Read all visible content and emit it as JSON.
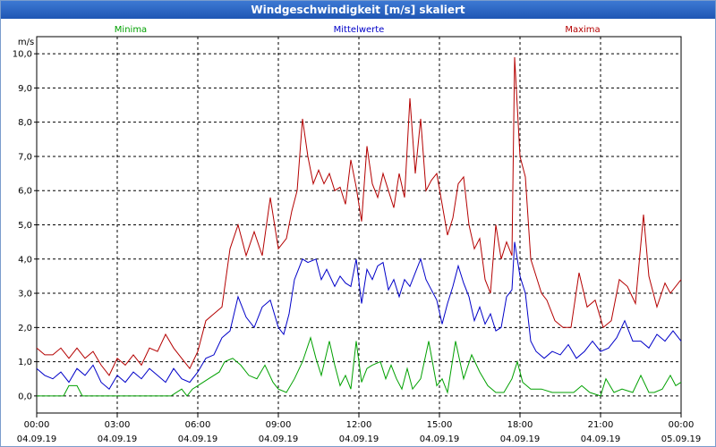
{
  "window": {
    "title": "Windgeschwindigkeit [m/s] skaliert"
  },
  "chart_data": {
    "type": "line",
    "title": "Windgeschwindigkeit [m/s] skaliert",
    "ylabel": "m/s",
    "ylim": [
      -0.5,
      10.5
    ],
    "xlim": [
      0,
      24
    ],
    "grid": true,
    "legend": "top",
    "y_ticks": [
      "0,0",
      "1,0",
      "2,0",
      "3,0",
      "4,0",
      "5,0",
      "6,0",
      "7,0",
      "8,0",
      "9,0",
      "10,0"
    ],
    "x_ticks": [
      {
        "time": "00:00",
        "date": "04.09.19"
      },
      {
        "time": "03:00",
        "date": "04.09.19"
      },
      {
        "time": "06:00",
        "date": "04.09.19"
      },
      {
        "time": "09:00",
        "date": "04.09.19"
      },
      {
        "time": "12:00",
        "date": "04.09.19"
      },
      {
        "time": "15:00",
        "date": "04.09.19"
      },
      {
        "time": "18:00",
        "date": "04.09.19"
      },
      {
        "time": "21:00",
        "date": "04.09.19"
      },
      {
        "time": "00:00",
        "date": "05.09.19"
      }
    ],
    "series": [
      {
        "name": "Minima",
        "color": "#00a000",
        "points": [
          [
            0,
            0
          ],
          [
            1,
            0
          ],
          [
            1.2,
            0.3
          ],
          [
            1.5,
            0.3
          ],
          [
            1.7,
            0
          ],
          [
            3,
            0
          ],
          [
            4,
            0
          ],
          [
            5,
            0
          ],
          [
            5.4,
            0.2
          ],
          [
            5.6,
            0
          ],
          [
            5.8,
            0.2
          ],
          [
            6,
            0.3
          ],
          [
            6.4,
            0.5
          ],
          [
            6.8,
            0.7
          ],
          [
            7,
            1
          ],
          [
            7.3,
            1.1
          ],
          [
            7.6,
            0.9
          ],
          [
            7.9,
            0.6
          ],
          [
            8.2,
            0.5
          ],
          [
            8.5,
            0.9
          ],
          [
            8.8,
            0.4
          ],
          [
            9,
            0.2
          ],
          [
            9.3,
            0.1
          ],
          [
            9.6,
            0.5
          ],
          [
            9.9,
            1
          ],
          [
            10.2,
            1.7
          ],
          [
            10.4,
            1.1
          ],
          [
            10.6,
            0.6
          ],
          [
            10.9,
            1.6
          ],
          [
            11.1,
            0.9
          ],
          [
            11.3,
            0.3
          ],
          [
            11.5,
            0.6
          ],
          [
            11.7,
            0.2
          ],
          [
            11.9,
            1.6
          ],
          [
            12.1,
            0.4
          ],
          [
            12.3,
            0.8
          ],
          [
            12.5,
            0.9
          ],
          [
            12.8,
            1.0
          ],
          [
            13,
            0.5
          ],
          [
            13.2,
            0.9
          ],
          [
            13.4,
            0.5
          ],
          [
            13.6,
            0.2
          ],
          [
            13.8,
            0.8
          ],
          [
            14,
            0.2
          ],
          [
            14.3,
            0.5
          ],
          [
            14.6,
            1.6
          ],
          [
            14.9,
            0.3
          ],
          [
            15.1,
            0.5
          ],
          [
            15.3,
            0.1
          ],
          [
            15.6,
            1.6
          ],
          [
            15.9,
            0.5
          ],
          [
            16.2,
            1.2
          ],
          [
            16.5,
            0.7
          ],
          [
            16.8,
            0.3
          ],
          [
            17.1,
            0.1
          ],
          [
            17.4,
            0.1
          ],
          [
            17.7,
            0.5
          ],
          [
            17.9,
            1.0
          ],
          [
            18.1,
            0.4
          ],
          [
            18.4,
            0.2
          ],
          [
            18.8,
            0.2
          ],
          [
            19.2,
            0.1
          ],
          [
            19.6,
            0.1
          ],
          [
            20,
            0.1
          ],
          [
            20.3,
            0.3
          ],
          [
            20.6,
            0.1
          ],
          [
            21,
            0
          ],
          [
            21.2,
            0.5
          ],
          [
            21.5,
            0.1
          ],
          [
            21.8,
            0.2
          ],
          [
            22.2,
            0.1
          ],
          [
            22.5,
            0.6
          ],
          [
            22.8,
            0.1
          ],
          [
            23,
            0.1
          ],
          [
            23.3,
            0.2
          ],
          [
            23.6,
            0.6
          ],
          [
            23.8,
            0.3
          ],
          [
            24,
            0.4
          ]
        ]
      },
      {
        "name": "Mittelwerte",
        "color": "#0000c8",
        "points": [
          [
            0,
            0.8
          ],
          [
            0.3,
            0.6
          ],
          [
            0.6,
            0.5
          ],
          [
            0.9,
            0.7
          ],
          [
            1.2,
            0.4
          ],
          [
            1.5,
            0.8
          ],
          [
            1.8,
            0.6
          ],
          [
            2.1,
            0.9
          ],
          [
            2.4,
            0.4
          ],
          [
            2.7,
            0.2
          ],
          [
            3,
            0.6
          ],
          [
            3.3,
            0.4
          ],
          [
            3.6,
            0.7
          ],
          [
            3.9,
            0.5
          ],
          [
            4.2,
            0.8
          ],
          [
            4.5,
            0.6
          ],
          [
            4.8,
            0.4
          ],
          [
            5.1,
            0.8
          ],
          [
            5.4,
            0.5
          ],
          [
            5.7,
            0.4
          ],
          [
            6,
            0.7
          ],
          [
            6.3,
            1.1
          ],
          [
            6.6,
            1.2
          ],
          [
            6.9,
            1.7
          ],
          [
            7.2,
            1.9
          ],
          [
            7.5,
            2.9
          ],
          [
            7.8,
            2.3
          ],
          [
            8.1,
            2.0
          ],
          [
            8.4,
            2.6
          ],
          [
            8.7,
            2.8
          ],
          [
            9,
            2.0
          ],
          [
            9.2,
            1.8
          ],
          [
            9.4,
            2.4
          ],
          [
            9.6,
            3.4
          ],
          [
            9.9,
            4.0
          ],
          [
            10.1,
            3.9
          ],
          [
            10.4,
            4.0
          ],
          [
            10.6,
            3.4
          ],
          [
            10.8,
            3.7
          ],
          [
            11.1,
            3.2
          ],
          [
            11.3,
            3.5
          ],
          [
            11.5,
            3.3
          ],
          [
            11.7,
            3.2
          ],
          [
            11.9,
            4.0
          ],
          [
            12.1,
            2.7
          ],
          [
            12.3,
            3.7
          ],
          [
            12.5,
            3.4
          ],
          [
            12.7,
            3.8
          ],
          [
            12.9,
            3.9
          ],
          [
            13.1,
            3.1
          ],
          [
            13.3,
            3.4
          ],
          [
            13.5,
            2.9
          ],
          [
            13.7,
            3.4
          ],
          [
            13.9,
            3.2
          ],
          [
            14.1,
            3.6
          ],
          [
            14.3,
            4.0
          ],
          [
            14.5,
            3.4
          ],
          [
            14.7,
            3.1
          ],
          [
            14.9,
            2.8
          ],
          [
            15.1,
            2.1
          ],
          [
            15.3,
            2.7
          ],
          [
            15.5,
            3.2
          ],
          [
            15.7,
            3.8
          ],
          [
            15.9,
            3.3
          ],
          [
            16.1,
            2.9
          ],
          [
            16.3,
            2.2
          ],
          [
            16.5,
            2.6
          ],
          [
            16.7,
            2.1
          ],
          [
            16.9,
            2.4
          ],
          [
            17.1,
            1.9
          ],
          [
            17.3,
            2.0
          ],
          [
            17.5,
            2.9
          ],
          [
            17.7,
            3.1
          ],
          [
            17.8,
            4.5
          ],
          [
            18,
            3.5
          ],
          [
            18.2,
            3.0
          ],
          [
            18.4,
            1.6
          ],
          [
            18.6,
            1.3
          ],
          [
            18.9,
            1.1
          ],
          [
            19.2,
            1.3
          ],
          [
            19.5,
            1.2
          ],
          [
            19.8,
            1.5
          ],
          [
            20.1,
            1.1
          ],
          [
            20.4,
            1.3
          ],
          [
            20.7,
            1.6
          ],
          [
            21,
            1.3
          ],
          [
            21.3,
            1.4
          ],
          [
            21.6,
            1.7
          ],
          [
            21.9,
            2.2
          ],
          [
            22.2,
            1.6
          ],
          [
            22.5,
            1.6
          ],
          [
            22.8,
            1.4
          ],
          [
            23.1,
            1.8
          ],
          [
            23.4,
            1.6
          ],
          [
            23.7,
            1.9
          ],
          [
            24,
            1.6
          ]
        ]
      },
      {
        "name": "Maxima",
        "color": "#b40000",
        "points": [
          [
            0,
            1.4
          ],
          [
            0.3,
            1.2
          ],
          [
            0.6,
            1.2
          ],
          [
            0.9,
            1.4
          ],
          [
            1.2,
            1.1
          ],
          [
            1.5,
            1.4
          ],
          [
            1.8,
            1.1
          ],
          [
            2.1,
            1.3
          ],
          [
            2.4,
            0.9
          ],
          [
            2.7,
            0.6
          ],
          [
            3,
            1.1
          ],
          [
            3.3,
            0.9
          ],
          [
            3.6,
            1.2
          ],
          [
            3.9,
            0.9
          ],
          [
            4.2,
            1.4
          ],
          [
            4.5,
            1.3
          ],
          [
            4.8,
            1.8
          ],
          [
            5.1,
            1.4
          ],
          [
            5.4,
            1.1
          ],
          [
            5.7,
            0.8
          ],
          [
            6,
            1.3
          ],
          [
            6.3,
            2.2
          ],
          [
            6.6,
            2.4
          ],
          [
            6.9,
            2.6
          ],
          [
            7.2,
            4.3
          ],
          [
            7.5,
            5.0
          ],
          [
            7.8,
            4.1
          ],
          [
            8.1,
            4.8
          ],
          [
            8.4,
            4.1
          ],
          [
            8.7,
            5.8
          ],
          [
            9,
            4.3
          ],
          [
            9.3,
            4.6
          ],
          [
            9.5,
            5.4
          ],
          [
            9.7,
            6.0
          ],
          [
            9.9,
            8.1
          ],
          [
            10.1,
            7.0
          ],
          [
            10.3,
            6.2
          ],
          [
            10.5,
            6.6
          ],
          [
            10.7,
            6.2
          ],
          [
            10.9,
            6.5
          ],
          [
            11.1,
            6.0
          ],
          [
            11.3,
            6.1
          ],
          [
            11.5,
            5.6
          ],
          [
            11.7,
            6.9
          ],
          [
            11.9,
            6.1
          ],
          [
            12.1,
            5.1
          ],
          [
            12.3,
            7.3
          ],
          [
            12.5,
            6.2
          ],
          [
            12.7,
            5.8
          ],
          [
            12.9,
            6.5
          ],
          [
            13.1,
            6.0
          ],
          [
            13.3,
            5.5
          ],
          [
            13.5,
            6.5
          ],
          [
            13.7,
            5.8
          ],
          [
            13.9,
            8.7
          ],
          [
            14.1,
            6.5
          ],
          [
            14.3,
            8.1
          ],
          [
            14.5,
            6.0
          ],
          [
            14.7,
            6.3
          ],
          [
            14.9,
            6.5
          ],
          [
            15.1,
            5.6
          ],
          [
            15.3,
            4.7
          ],
          [
            15.5,
            5.2
          ],
          [
            15.7,
            6.2
          ],
          [
            15.9,
            6.4
          ],
          [
            16.1,
            5.0
          ],
          [
            16.3,
            4.3
          ],
          [
            16.5,
            4.6
          ],
          [
            16.7,
            3.4
          ],
          [
            16.9,
            3.0
          ],
          [
            17.1,
            5.0
          ],
          [
            17.3,
            4.0
          ],
          [
            17.5,
            4.5
          ],
          [
            17.7,
            4.1
          ],
          [
            17.8,
            9.9
          ],
          [
            18,
            7.0
          ],
          [
            18.2,
            6.4
          ],
          [
            18.4,
            4.0
          ],
          [
            18.6,
            3.5
          ],
          [
            18.8,
            3.0
          ],
          [
            19,
            2.8
          ],
          [
            19.3,
            2.2
          ],
          [
            19.6,
            2.0
          ],
          [
            19.9,
            2.0
          ],
          [
            20.2,
            3.6
          ],
          [
            20.5,
            2.6
          ],
          [
            20.8,
            2.8
          ],
          [
            21.1,
            2.0
          ],
          [
            21.4,
            2.2
          ],
          [
            21.7,
            3.4
          ],
          [
            22,
            3.2
          ],
          [
            22.3,
            2.7
          ],
          [
            22.6,
            5.3
          ],
          [
            22.8,
            3.5
          ],
          [
            23.1,
            2.6
          ],
          [
            23.4,
            3.3
          ],
          [
            23.6,
            3.0
          ],
          [
            24,
            3.4
          ]
        ]
      }
    ]
  }
}
